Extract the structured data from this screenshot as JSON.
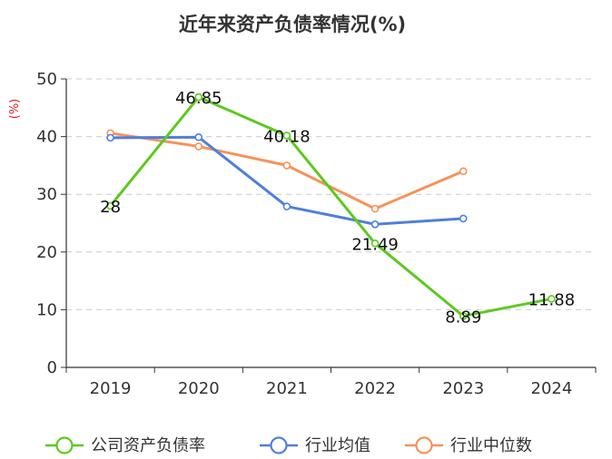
{
  "chart_data": {
    "type": "line",
    "title": "近年来资产负债率情况(%)",
    "y_unit": "(%)",
    "categories": [
      "2019",
      "2020",
      "2021",
      "2022",
      "2023",
      "2024"
    ],
    "ylim": [
      0,
      50
    ],
    "y_ticks": [
      0,
      10,
      20,
      30,
      40,
      50
    ],
    "grid": true,
    "legend_position": "bottom",
    "series": [
      {
        "name": "公司资产负债率",
        "color": "#5cc91f",
        "values": [
          28,
          46.85,
          40.18,
          21.49,
          8.89,
          11.88
        ],
        "labels": [
          "28",
          "46.85",
          "40.18",
          "21.49",
          "8.89",
          "11.88"
        ]
      },
      {
        "name": "行业均值",
        "color": "#4f7fdc",
        "values": [
          39.8,
          39.9,
          27.9,
          24.8,
          25.8,
          null
        ]
      },
      {
        "name": "行业中位数",
        "color": "#f7925a",
        "values": [
          40.6,
          38.3,
          35.0,
          27.5,
          34.0,
          null
        ]
      }
    ]
  }
}
